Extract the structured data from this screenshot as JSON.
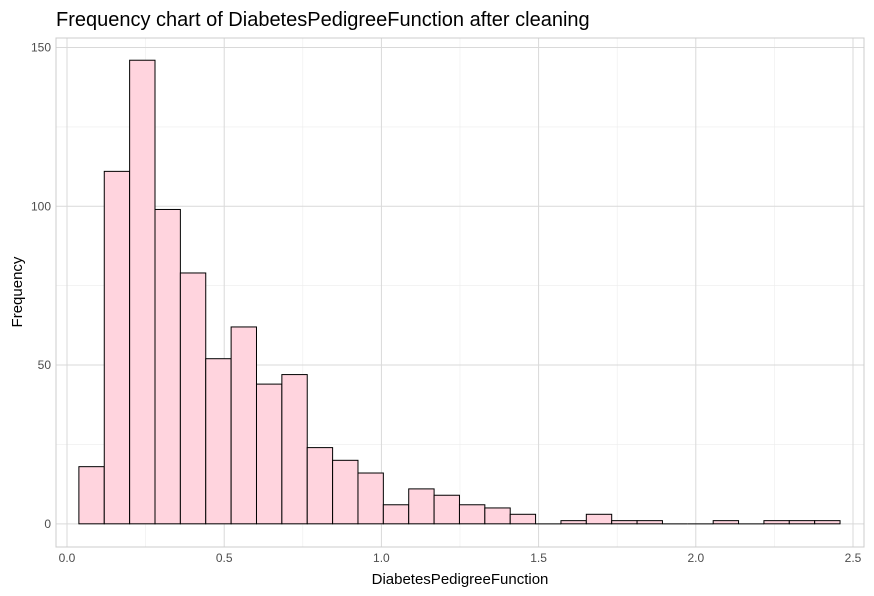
{
  "chart_data": {
    "type": "bar",
    "title": "Frequency chart of DiabetesPedigreeFunction after cleaning",
    "xlabel": "DiabetesPedigreeFunction",
    "ylabel": "Frequency",
    "xlim": [
      -0.035,
      2.535
    ],
    "ylim": [
      -7.3,
      153
    ],
    "bin_width": 0.0807,
    "first_bin_start": 0.0378,
    "values": [
      18,
      111,
      146,
      99,
      79,
      52,
      62,
      44,
      47,
      24,
      20,
      16,
      6,
      11,
      9,
      6,
      5,
      3,
      0,
      1,
      3,
      1,
      1,
      0,
      0,
      1,
      0,
      1,
      1,
      1
    ],
    "x_ticks": [
      {
        "value": 0.0,
        "label": "0.0"
      },
      {
        "value": 0.5,
        "label": "0.5"
      },
      {
        "value": 1.0,
        "label": "1.0"
      },
      {
        "value": 1.5,
        "label": "1.5"
      },
      {
        "value": 2.0,
        "label": "2.0"
      },
      {
        "value": 2.5,
        "label": "2.5"
      }
    ],
    "y_ticks": [
      {
        "value": 0,
        "label": "0"
      },
      {
        "value": 50,
        "label": "50"
      },
      {
        "value": 100,
        "label": "100"
      },
      {
        "value": 150,
        "label": "150"
      }
    ],
    "grid": true,
    "legend": "none",
    "bar_fill": "#ffd4de",
    "bar_stroke": "#000000",
    "grid_major_color": "#d9d9d9",
    "grid_minor_color": "#ececec",
    "panel_border_color": "#cccccc"
  }
}
